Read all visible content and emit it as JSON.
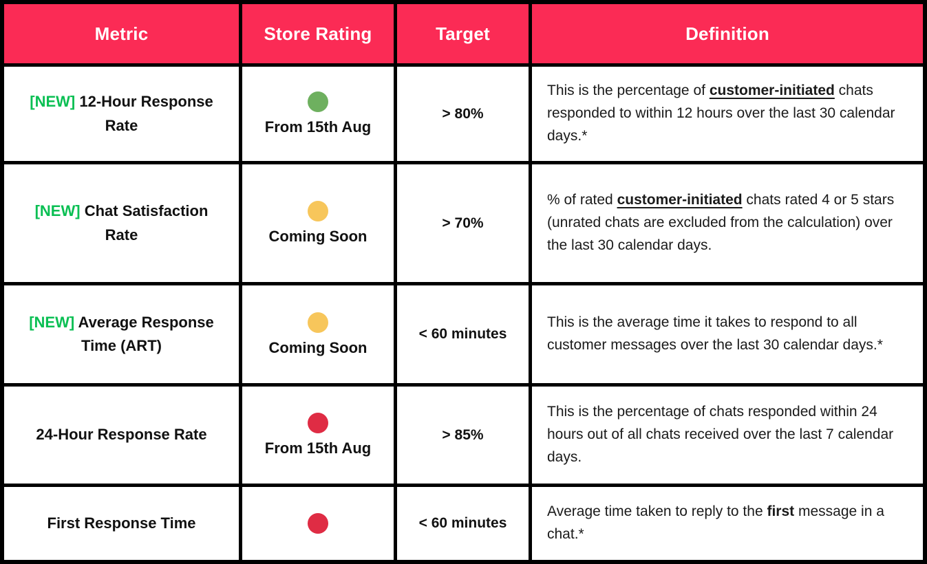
{
  "table": {
    "headers": [
      "Metric",
      "Store Rating",
      "Target",
      "Definition"
    ],
    "rows": [
      {
        "metric": {
          "prefix": "[NEW]",
          "name": "12-Hour Response Rate"
        },
        "rating": {
          "dot": "green",
          "label": "From 15th Aug"
        },
        "target": "> 80%",
        "definition": [
          {
            "text": "This is the percentage of ",
            "bold": false,
            "underline": false
          },
          {
            "text": "customer-initiated",
            "bold": true,
            "underline": true
          },
          {
            "text": " chats responded to within 12 hours over the last 30 calendar days.*",
            "bold": false,
            "underline": false
          }
        ]
      },
      {
        "metric": {
          "prefix": "[NEW]",
          "name": "Chat Satisfaction Rate"
        },
        "rating": {
          "dot": "yellow",
          "label": "Coming Soon"
        },
        "target": "> 70%",
        "definition": [
          {
            "text": "% of rated ",
            "bold": false,
            "underline": false
          },
          {
            "text": "customer-initiated",
            "bold": true,
            "underline": true
          },
          {
            "text": " chats rated 4 or 5 stars (unrated chats are excluded from the calculation) over the last 30 calendar days.",
            "bold": false,
            "underline": false
          }
        ]
      },
      {
        "metric": {
          "prefix": "[NEW]",
          "name": "Average Response Time (ART)"
        },
        "rating": {
          "dot": "yellow",
          "label": "Coming Soon"
        },
        "target": "< 60 minutes",
        "definition": [
          {
            "text": "This is the average time it takes to respond to all customer messages over the last 30 calendar days.*",
            "bold": false,
            "underline": false
          }
        ]
      },
      {
        "metric": {
          "prefix": "",
          "name": "24-Hour Response Rate"
        },
        "rating": {
          "dot": "red",
          "label": "From 15th Aug"
        },
        "target": "> 85%",
        "definition": [
          {
            "text": "This is the percentage of chats responded within 24 hours out of all chats received over the last 7 calendar days.",
            "bold": false,
            "underline": false
          }
        ]
      },
      {
        "metric": {
          "prefix": "",
          "name": "First Response Time"
        },
        "rating": {
          "dot": "red",
          "label": ""
        },
        "target": "< 60 minutes",
        "definition": [
          {
            "text": "Average time taken to reply to the ",
            "bold": false,
            "underline": false
          },
          {
            "text": "first",
            "bold": true,
            "underline": false
          },
          {
            "text": " message in a chat.*",
            "bold": false,
            "underline": false
          }
        ]
      }
    ]
  },
  "colors": {
    "header_bg": "#fb2b55",
    "header_text": "#ffffff",
    "new_tag": "#0abf53",
    "dot_green": "#6eb05f",
    "dot_yellow": "#f7c65b",
    "dot_red": "#df2c44",
    "border": "#000000"
  }
}
